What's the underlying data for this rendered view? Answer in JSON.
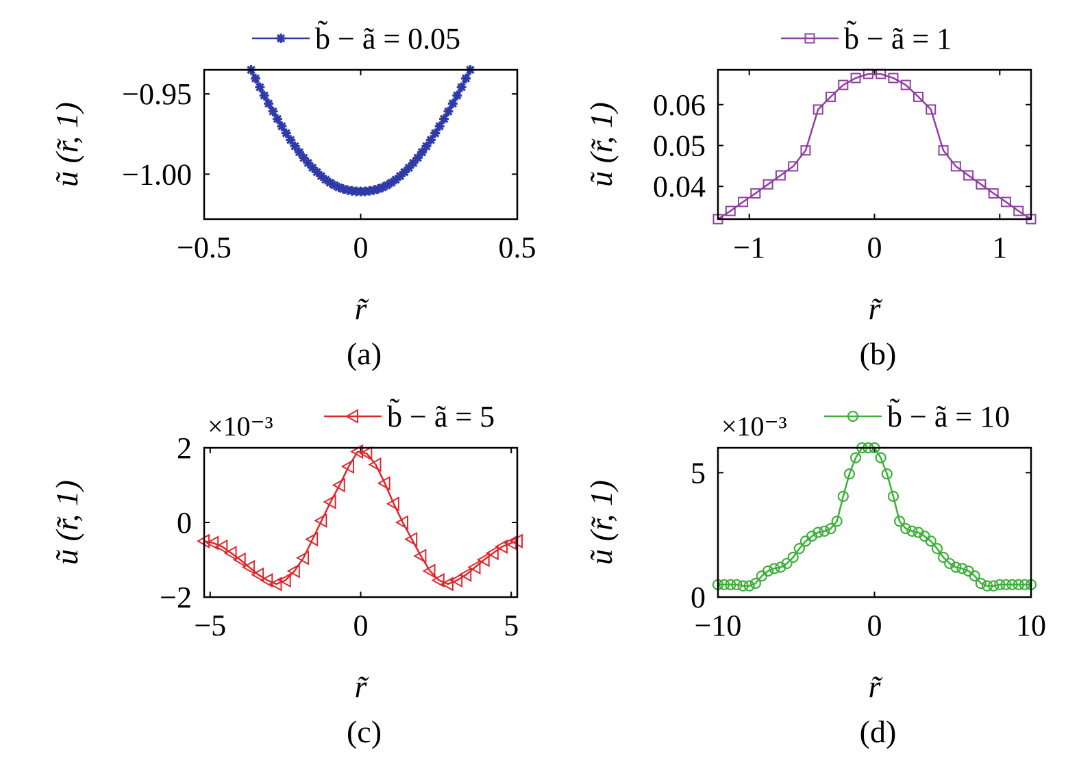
{
  "chart_data": [
    {
      "type": "line",
      "caption": "(a)",
      "legend": "b̃ − ã = 0.05",
      "xlabel": "r̃",
      "ylabel": "ũ (r̃, 1)",
      "xlim": [
        -0.5,
        0.5
      ],
      "ylim": [
        -1.028,
        -0.935
      ],
      "xticks": [
        -0.5,
        0,
        0.5
      ],
      "xtick_labels": [
        "−0.5",
        "0",
        "0.5"
      ],
      "yticks": [
        -0.95,
        -1.0
      ],
      "ytick_labels": [
        "−0.95",
        "−1.00"
      ],
      "exponent_label": "",
      "color": "#2E3AA8",
      "marker": "star",
      "series": [
        {
          "x": [
            -0.35,
            -0.336,
            -0.322,
            -0.308,
            -0.294,
            -0.28,
            -0.266,
            -0.252,
            -0.238,
            -0.224,
            -0.21,
            -0.196,
            -0.182,
            -0.168,
            -0.154,
            -0.14,
            -0.126,
            -0.112,
            -0.098,
            -0.084,
            -0.07,
            -0.056,
            -0.042,
            -0.028,
            -0.014,
            0,
            0.014,
            0.028,
            0.042,
            0.056,
            0.07,
            0.084,
            0.098,
            0.112,
            0.126,
            0.14,
            0.154,
            0.168,
            0.182,
            0.196,
            0.21,
            0.224,
            0.238,
            0.252,
            0.266,
            0.28,
            0.294,
            0.308,
            0.322,
            0.336,
            0.35
          ],
          "y": [
            -0.935,
            -0.9404,
            -0.9458,
            -0.951,
            -0.956,
            -0.9609,
            -0.9656,
            -0.9702,
            -0.9745,
            -0.9787,
            -0.9826,
            -0.9863,
            -0.9898,
            -0.993,
            -0.996,
            -0.9987,
            -1.0012,
            -1.0034,
            -1.0053,
            -1.0069,
            -1.0082,
            -1.0092,
            -1.0099,
            -1.0104,
            -1.0107,
            -1.0108,
            -1.0107,
            -1.0104,
            -1.0099,
            -1.0092,
            -1.0082,
            -1.0069,
            -1.0053,
            -1.0034,
            -1.0012,
            -0.9987,
            -0.996,
            -0.993,
            -0.9898,
            -0.9863,
            -0.9826,
            -0.9787,
            -0.9745,
            -0.9702,
            -0.9656,
            -0.9609,
            -0.956,
            -0.951,
            -0.9458,
            -0.9404,
            -0.935
          ]
        }
      ]
    },
    {
      "type": "line",
      "caption": "(b)",
      "legend": "b̃ − ã = 1",
      "xlabel": "r̃",
      "ylabel": "ũ (r̃, 1)",
      "xlim": [
        -1.25,
        1.25
      ],
      "ylim": [
        0.032,
        0.0685
      ],
      "xticks": [
        -1,
        0,
        1
      ],
      "xtick_labels": [
        "−1",
        "0",
        "1"
      ],
      "yticks": [
        0.04,
        0.05,
        0.06
      ],
      "ytick_labels": [
        "0.04",
        "0.05",
        "0.06"
      ],
      "exponent_label": "",
      "color": "#8E3FA0",
      "marker": "square",
      "series": [
        {
          "x": [
            -1.25,
            -1.15,
            -1.05,
            -0.95,
            -0.85,
            -0.75,
            -0.65,
            -0.55,
            -0.45,
            -0.35,
            -0.25,
            -0.15,
            -0.05,
            0.05,
            0.15,
            0.25,
            0.35,
            0.45,
            0.55,
            0.65,
            0.75,
            0.85,
            0.95,
            1.05,
            1.15,
            1.25
          ],
          "y": [
            0.032,
            0.034,
            0.0362,
            0.0383,
            0.0405,
            0.0427,
            0.0449,
            0.0488,
            0.0588,
            0.0619,
            0.0648,
            0.0665,
            0.0675,
            0.0675,
            0.0665,
            0.0648,
            0.0619,
            0.0588,
            0.0488,
            0.0449,
            0.0427,
            0.0405,
            0.0383,
            0.0362,
            0.034,
            0.032
          ]
        }
      ]
    },
    {
      "type": "line",
      "caption": "(c)",
      "legend": "b̃ − ã = 5",
      "xlabel": "r̃",
      "ylabel": "ũ (r̃, 1)",
      "xlim": [
        -5.2,
        5.2
      ],
      "ylim": [
        -2,
        2
      ],
      "xticks": [
        -5,
        0,
        5
      ],
      "xtick_labels": [
        "−5",
        "0",
        "5"
      ],
      "yticks": [
        -2,
        0,
        2
      ],
      "ytick_labels": [
        "−2",
        "0",
        "2"
      ],
      "exponent_label": "×10⁻³",
      "color": "#E0262B",
      "marker": "triangle-left",
      "series": [
        {
          "x": [
            -5.2,
            -4.9,
            -4.6,
            -4.3,
            -4.0,
            -3.7,
            -3.4,
            -3.1,
            -2.8,
            -2.5,
            -2.2,
            -1.9,
            -1.6,
            -1.3,
            -1.0,
            -0.7,
            -0.4,
            -0.1,
            0.2,
            0.5,
            0.8,
            1.1,
            1.4,
            1.7,
            2.0,
            2.3,
            2.6,
            2.9,
            3.2,
            3.5,
            3.8,
            4.1,
            4.4,
            4.7,
            5.0,
            5.2
          ],
          "y": [
            -0.5,
            -0.55,
            -0.65,
            -0.82,
            -1.0,
            -1.2,
            -1.4,
            -1.55,
            -1.65,
            -1.55,
            -1.3,
            -0.95,
            -0.45,
            0.05,
            0.55,
            1.0,
            1.5,
            1.9,
            1.85,
            1.55,
            1.05,
            0.5,
            0.0,
            -0.45,
            -0.9,
            -1.3,
            -1.55,
            -1.65,
            -1.55,
            -1.4,
            -1.2,
            -1.0,
            -0.82,
            -0.65,
            -0.55,
            -0.5
          ]
        }
      ]
    },
    {
      "type": "line",
      "caption": "(d)",
      "legend": "b̃ − ã = 10",
      "xlabel": "r̃",
      "ylabel": "ũ (r̃, 1)",
      "xlim": [
        -10,
        10
      ],
      "ylim": [
        0,
        6
      ],
      "xticks": [
        -10,
        0,
        10
      ],
      "xtick_labels": [
        "−10",
        "0",
        "10"
      ],
      "yticks": [
        0,
        5
      ],
      "ytick_labels": [
        "0",
        "5"
      ],
      "exponent_label": "×10⁻³",
      "color": "#3DAF3A",
      "marker": "circle",
      "series": [
        {
          "x": [
            -10,
            -9.6,
            -9.2,
            -8.8,
            -8.4,
            -8.0,
            -7.6,
            -7.2,
            -6.8,
            -6.4,
            -6.0,
            -5.6,
            -5.2,
            -4.8,
            -4.4,
            -4.0,
            -3.6,
            -3.2,
            -2.8,
            -2.4,
            -2.0,
            -1.6,
            -1.2,
            -0.8,
            -0.4,
            0,
            0.4,
            0.8,
            1.2,
            1.6,
            2.0,
            2.4,
            2.8,
            3.2,
            3.6,
            4.0,
            4.4,
            4.8,
            5.2,
            5.6,
            6.0,
            6.4,
            6.8,
            7.2,
            7.6,
            8.0,
            8.4,
            8.8,
            9.2,
            9.6,
            10
          ],
          "y": [
            0.5,
            0.5,
            0.5,
            0.5,
            0.45,
            0.45,
            0.55,
            0.85,
            1.05,
            1.15,
            1.2,
            1.35,
            1.6,
            1.95,
            2.25,
            2.45,
            2.6,
            2.65,
            2.75,
            3.05,
            4.05,
            4.95,
            5.6,
            6.0,
            6.0,
            6.0,
            5.6,
            4.95,
            4.05,
            3.05,
            2.75,
            2.65,
            2.6,
            2.45,
            2.25,
            1.95,
            1.6,
            1.35,
            1.2,
            1.15,
            1.05,
            0.85,
            0.55,
            0.45,
            0.45,
            0.5,
            0.5,
            0.5,
            0.5,
            0.5,
            0.5
          ]
        }
      ]
    }
  ]
}
